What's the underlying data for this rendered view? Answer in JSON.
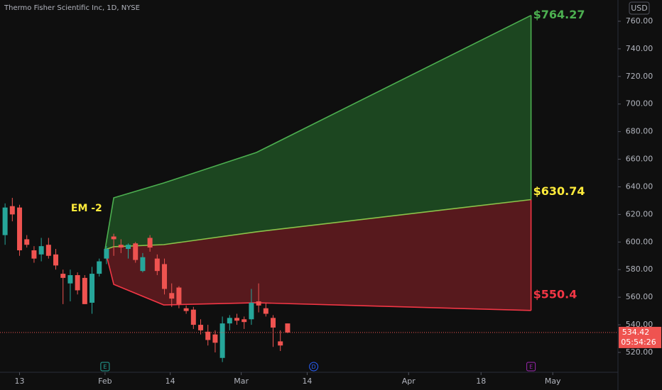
{
  "chart_data": {
    "type": "candlestick",
    "title": "Thermo Fisher Scientific Inc, 1D, NYSE",
    "currency": "USD",
    "x": [
      0,
      1,
      2,
      3,
      4,
      5,
      6,
      7,
      8,
      9,
      10,
      11,
      12,
      13,
      14,
      15,
      16,
      17,
      18,
      19,
      20,
      21,
      22,
      23,
      24,
      25,
      26,
      27,
      28,
      29,
      30,
      31,
      32,
      33,
      34,
      35,
      36,
      37,
      38,
      39
    ],
    "open": [
      605,
      626,
      625,
      602,
      594,
      591,
      598,
      591,
      577,
      570,
      576,
      574,
      556,
      577,
      588,
      604,
      598,
      595,
      599,
      579,
      603,
      588,
      584,
      563,
      567,
      552,
      551,
      540,
      535,
      533,
      516,
      541,
      545,
      544,
      544,
      557,
      552,
      545,
      528,
      541
    ],
    "high": [
      628,
      632,
      627,
      605,
      597,
      603,
      603,
      595,
      580,
      580,
      578,
      576,
      582,
      588,
      597,
      606,
      602,
      599,
      600,
      592,
      605,
      591,
      588,
      570,
      568,
      554,
      553,
      544,
      540,
      536,
      546,
      547,
      548,
      546,
      566,
      570,
      556,
      547,
      536,
      541
    ],
    "low": [
      598,
      615,
      590,
      596,
      585,
      586,
      588,
      580,
      555,
      557,
      562,
      555,
      548,
      575,
      584,
      590,
      592,
      588,
      585,
      578,
      593,
      576,
      562,
      553,
      552,
      548,
      537,
      533,
      525,
      520,
      513,
      536,
      540,
      537,
      540,
      549,
      546,
      524,
      521,
      534
    ],
    "close": [
      625,
      620,
      594,
      598,
      588,
      597,
      590,
      583,
      574,
      576,
      565,
      555,
      577,
      586,
      595,
      602,
      596,
      598,
      587,
      589,
      596,
      579,
      566,
      559,
      555,
      550,
      540,
      536,
      529,
      527,
      541,
      545,
      543,
      542,
      556,
      554,
      548,
      538,
      525,
      534.42
    ],
    "up_color": "#26a69a",
    "down_color": "#ef5350",
    "last_price_label": "534.42",
    "countdown": "05:54:26",
    "bands": {
      "x": [
        13.8,
        15.0,
        21.9,
        34.7,
        72.6
      ],
      "upper": {
        "values": [
          594.5,
          632.0,
          642.8,
          664.9,
          764.27
        ],
        "value_label": "$764.27",
        "color": "#4caf50"
      },
      "middle": {
        "values": [
          594.5,
          596.6,
          598.1,
          607.4,
          630.74
        ],
        "value_label": "$630.74",
        "color": "#8bc34a"
      },
      "lower": {
        "values": [
          594.5,
          569.3,
          554.4,
          556.0,
          550.4
        ],
        "value_label": "$550.4",
        "color": "#f23645"
      },
      "label": "EM -2"
    },
    "events": [
      {
        "label": "E",
        "x": 13.8
      },
      {
        "label": "D",
        "x": 42.6
      },
      {
        "label": "E",
        "x": 72.6
      }
    ],
    "xlim": [
      -0.7,
      84.6
    ],
    "ylim": [
      505.6,
      775.4
    ],
    "xticks": [
      {
        "value": 2,
        "label": "13"
      },
      {
        "value": 13.8,
        "label": "Feb"
      },
      {
        "value": 22.8,
        "label": "14"
      },
      {
        "value": 32.6,
        "label": "Mar"
      },
      {
        "value": 41.7,
        "label": "14"
      },
      {
        "value": 55.7,
        "label": "Apr"
      },
      {
        "value": 65.7,
        "label": "18"
      },
      {
        "value": 75.6,
        "label": "May"
      }
    ],
    "yticks": [
      {
        "value": 520,
        "label": "520.00"
      },
      {
        "value": 540,
        "label": "540.00"
      },
      {
        "value": 560,
        "label": "560.00"
      },
      {
        "value": 580,
        "label": "580.00"
      },
      {
        "value": 600,
        "label": "600.00"
      },
      {
        "value": 620,
        "label": "620.00"
      },
      {
        "value": 640,
        "label": "640.00"
      },
      {
        "value": 660,
        "label": "660.00"
      },
      {
        "value": 680,
        "label": "680.00"
      },
      {
        "value": 700,
        "label": "700.00"
      },
      {
        "value": 720,
        "label": "720.00"
      },
      {
        "value": 740,
        "label": "740.00"
      },
      {
        "value": 760,
        "label": "760.00"
      }
    ]
  }
}
